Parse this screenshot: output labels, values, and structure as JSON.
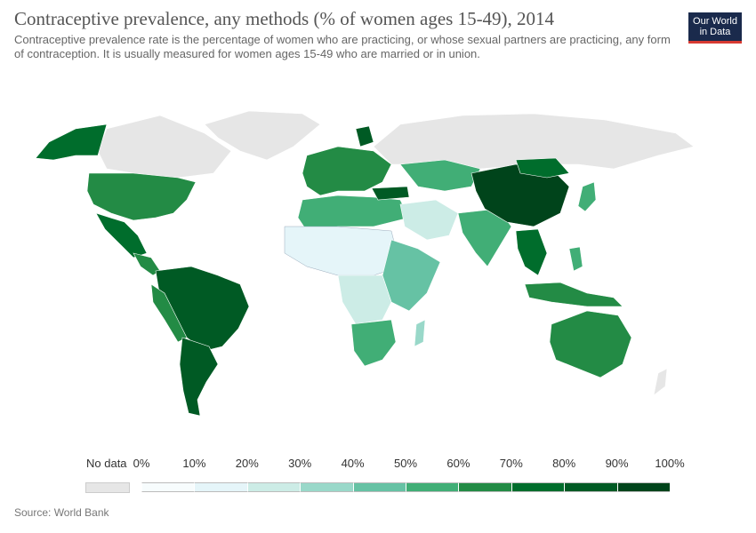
{
  "header": {
    "title": "Contraceptive prevalence, any methods (% of women ages 15-49), 2014",
    "subtitle": "Contraceptive prevalence rate is the percentage of women who are practicing, or whose sexual partners are practicing, any form of contraception. It is usually measured for women ages 15-49 who are married or in union."
  },
  "logo": {
    "line1": "Our World",
    "line2": "in Data"
  },
  "legend": {
    "no_data_label": "No data",
    "ticks": [
      "0%",
      "10%",
      "20%",
      "30%",
      "40%",
      "50%",
      "60%",
      "70%",
      "80%",
      "90%",
      "100%"
    ],
    "colors": [
      "#f7fcfd",
      "#e5f5f9",
      "#ccece6",
      "#99d8c9",
      "#66c2a4",
      "#41ae76",
      "#238b45",
      "#006d2c",
      "#005a24",
      "#00441b"
    ],
    "no_data_color": "#e6e6e6"
  },
  "source": "Source: World Bank"
}
